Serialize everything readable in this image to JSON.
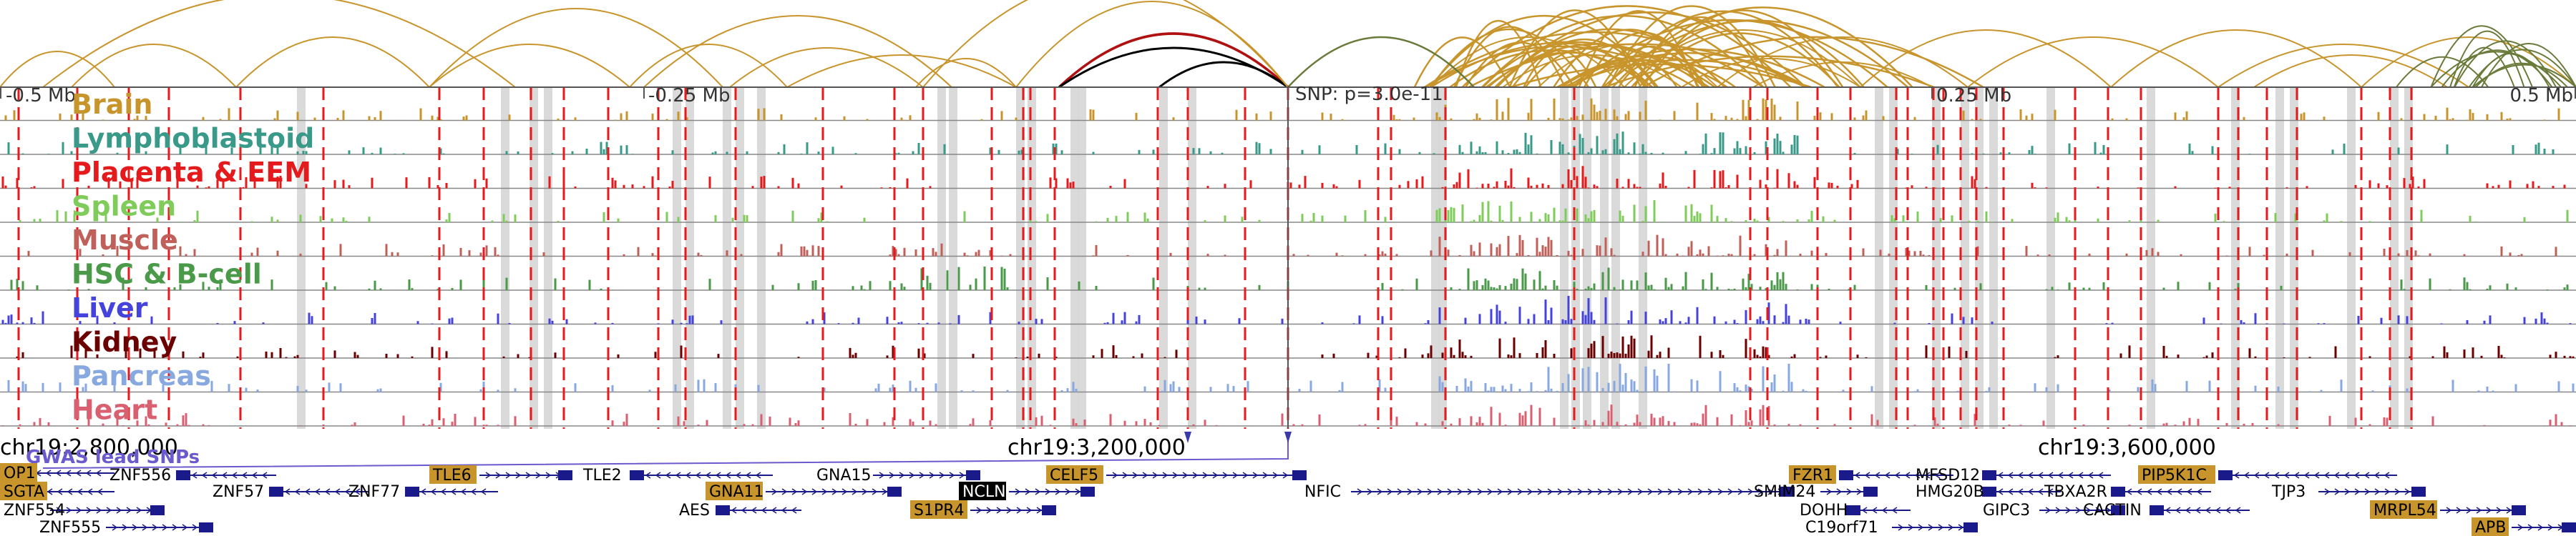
{
  "axis": {
    "ticks": [
      {
        "label": "-0.5 Mb",
        "pos": -0.5
      },
      {
        "label": "-0.25 Mb",
        "pos": -0.25
      },
      {
        "label": "0.25 Mb",
        "pos": 0.25
      },
      {
        "label": "0.5 Mb",
        "pos": 0.5
      }
    ],
    "snp_label": "SNP: p=3.0e-11"
  },
  "tracks": [
    {
      "name": "Brain",
      "color": "#c8952c"
    },
    {
      "name": "Lymphoblastoid",
      "color": "#3a9a8a"
    },
    {
      "name": "Placenta & EEM",
      "color": "#e41a1c"
    },
    {
      "name": "Spleen",
      "color": "#7fcc5a"
    },
    {
      "name": "Muscle",
      "color": "#c0605a"
    },
    {
      "name": "HSC & B-cell",
      "color": "#4a9a4a"
    },
    {
      "name": "Liver",
      "color": "#4444dd"
    },
    {
      "name": "Kidney",
      "color": "#6a0000"
    },
    {
      "name": "Pancreas",
      "color": "#88a8e0"
    },
    {
      "name": "Heart",
      "color": "#d86070"
    }
  ],
  "coordinates": [
    "chr19:2,800,000",
    "chr19:3,200,000",
    "chr19:3,600,000"
  ],
  "gwas_label": "GWAS lead SNPs",
  "genes": [
    {
      "name": "OP1",
      "boxed": true
    },
    {
      "name": "SGTA",
      "boxed": true
    },
    {
      "name": "ZNF554",
      "boxed": false
    },
    {
      "name": "ZNF555",
      "boxed": false
    },
    {
      "name": "ZNF556",
      "boxed": false
    },
    {
      "name": "ZNF57",
      "boxed": false
    },
    {
      "name": "ZNF77",
      "boxed": false
    },
    {
      "name": "TLE6",
      "boxed": true
    },
    {
      "name": "TLE2",
      "boxed": false
    },
    {
      "name": "AES",
      "boxed": false
    },
    {
      "name": "GNA11",
      "boxed": true
    },
    {
      "name": "GNA15",
      "boxed": false
    },
    {
      "name": "S1PR4",
      "boxed": true
    },
    {
      "name": "NCLN",
      "boxed": true,
      "dark": true
    },
    {
      "name": "CELF5",
      "boxed": true
    },
    {
      "name": "NFIC",
      "boxed": false
    },
    {
      "name": "FZR1",
      "boxed": true
    },
    {
      "name": "SMIM24",
      "boxed": false
    },
    {
      "name": "DOHH",
      "boxed": false
    },
    {
      "name": "C19orf71",
      "boxed": false
    },
    {
      "name": "HMG20B",
      "boxed": false
    },
    {
      "name": "GIPC3",
      "boxed": false
    },
    {
      "name": "MFSD12",
      "boxed": false
    },
    {
      "name": "TBXA2R",
      "boxed": false
    },
    {
      "name": "CACTIN",
      "boxed": false
    },
    {
      "name": "TJP3",
      "boxed": false
    },
    {
      "name": "PIP5K1C",
      "boxed": true
    },
    {
      "name": "MRPL54",
      "boxed": true
    },
    {
      "name": "APB",
      "boxed": true
    }
  ],
  "colors": {
    "arc_gold": "#c8952c",
    "arc_red": "#b01010",
    "arc_black": "#000000",
    "arc_green": "#6a7a3a",
    "highlight_red": "#e41a1c",
    "gene_navy": "#1a1a8a",
    "gene_box": "#c8952c"
  }
}
